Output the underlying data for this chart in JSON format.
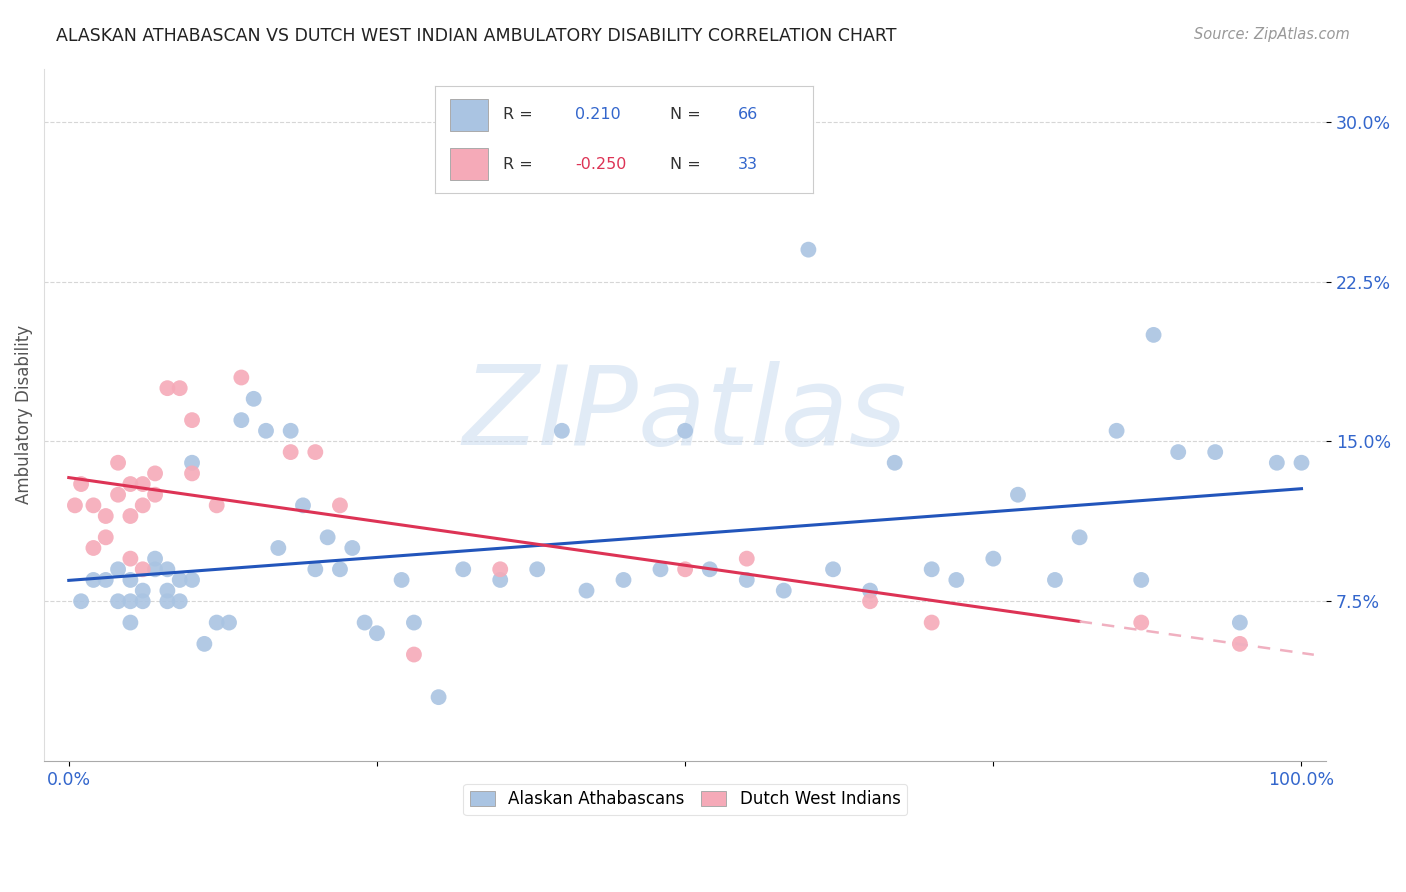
{
  "title": "ALASKAN ATHABASCAN VS DUTCH WEST INDIAN AMBULATORY DISABILITY CORRELATION CHART",
  "source": "Source: ZipAtlas.com",
  "ylabel": "Ambulatory Disability",
  "watermark": "ZIPatlas",
  "blue_R": 0.21,
  "blue_N": 66,
  "pink_R": -0.25,
  "pink_N": 33,
  "xlim": [
    -0.02,
    1.02
  ],
  "ylim": [
    0.0,
    0.325
  ],
  "yticks": [
    0.075,
    0.15,
    0.225,
    0.3
  ],
  "ytick_labels": [
    "7.5%",
    "15.0%",
    "22.5%",
    "30.0%"
  ],
  "blue_scatter_x": [
    0.01,
    0.02,
    0.03,
    0.04,
    0.04,
    0.05,
    0.05,
    0.05,
    0.06,
    0.06,
    0.07,
    0.07,
    0.08,
    0.08,
    0.08,
    0.09,
    0.09,
    0.1,
    0.1,
    0.11,
    0.12,
    0.13,
    0.14,
    0.15,
    0.16,
    0.17,
    0.18,
    0.19,
    0.2,
    0.21,
    0.22,
    0.23,
    0.24,
    0.25,
    0.27,
    0.28,
    0.3,
    0.32,
    0.35,
    0.38,
    0.4,
    0.42,
    0.45,
    0.48,
    0.5,
    0.52,
    0.55,
    0.58,
    0.6,
    0.62,
    0.65,
    0.67,
    0.7,
    0.72,
    0.75,
    0.77,
    0.8,
    0.82,
    0.85,
    0.87,
    0.88,
    0.9,
    0.93,
    0.95,
    0.98,
    1.0
  ],
  "blue_scatter_y": [
    0.075,
    0.085,
    0.085,
    0.09,
    0.075,
    0.085,
    0.075,
    0.065,
    0.08,
    0.075,
    0.09,
    0.095,
    0.08,
    0.075,
    0.09,
    0.085,
    0.075,
    0.14,
    0.085,
    0.055,
    0.065,
    0.065,
    0.16,
    0.17,
    0.155,
    0.1,
    0.155,
    0.12,
    0.09,
    0.105,
    0.09,
    0.1,
    0.065,
    0.06,
    0.085,
    0.065,
    0.03,
    0.09,
    0.085,
    0.09,
    0.155,
    0.08,
    0.085,
    0.09,
    0.155,
    0.09,
    0.085,
    0.08,
    0.24,
    0.09,
    0.08,
    0.14,
    0.09,
    0.085,
    0.095,
    0.125,
    0.085,
    0.105,
    0.155,
    0.085,
    0.2,
    0.145,
    0.145,
    0.065,
    0.14,
    0.14
  ],
  "pink_scatter_x": [
    0.005,
    0.01,
    0.02,
    0.02,
    0.03,
    0.03,
    0.04,
    0.04,
    0.05,
    0.05,
    0.05,
    0.06,
    0.06,
    0.06,
    0.07,
    0.07,
    0.08,
    0.09,
    0.1,
    0.1,
    0.12,
    0.14,
    0.18,
    0.2,
    0.22,
    0.28,
    0.35,
    0.5,
    0.55,
    0.65,
    0.7,
    0.87,
    0.95
  ],
  "pink_scatter_y": [
    0.12,
    0.13,
    0.12,
    0.1,
    0.115,
    0.105,
    0.14,
    0.125,
    0.13,
    0.115,
    0.095,
    0.13,
    0.12,
    0.09,
    0.135,
    0.125,
    0.175,
    0.175,
    0.16,
    0.135,
    0.12,
    0.18,
    0.145,
    0.145,
    0.12,
    0.05,
    0.09,
    0.09,
    0.095,
    0.075,
    0.065,
    0.065,
    0.055
  ],
  "blue_color": "#aac4e2",
  "pink_color": "#f5aab8",
  "blue_line_color": "#2255bb",
  "pink_line_color": "#dd3355",
  "pink_dashed_color": "#f0b0c0",
  "background_color": "#ffffff",
  "grid_color": "#cccccc",
  "legend_labels": [
    "Alaskan Athabascans",
    "Dutch West Indians"
  ],
  "legend_text_color": "#333333",
  "r_value_blue_color": "#3366cc",
  "r_value_pink_color": "#dd3355",
  "n_value_color": "#3366cc"
}
